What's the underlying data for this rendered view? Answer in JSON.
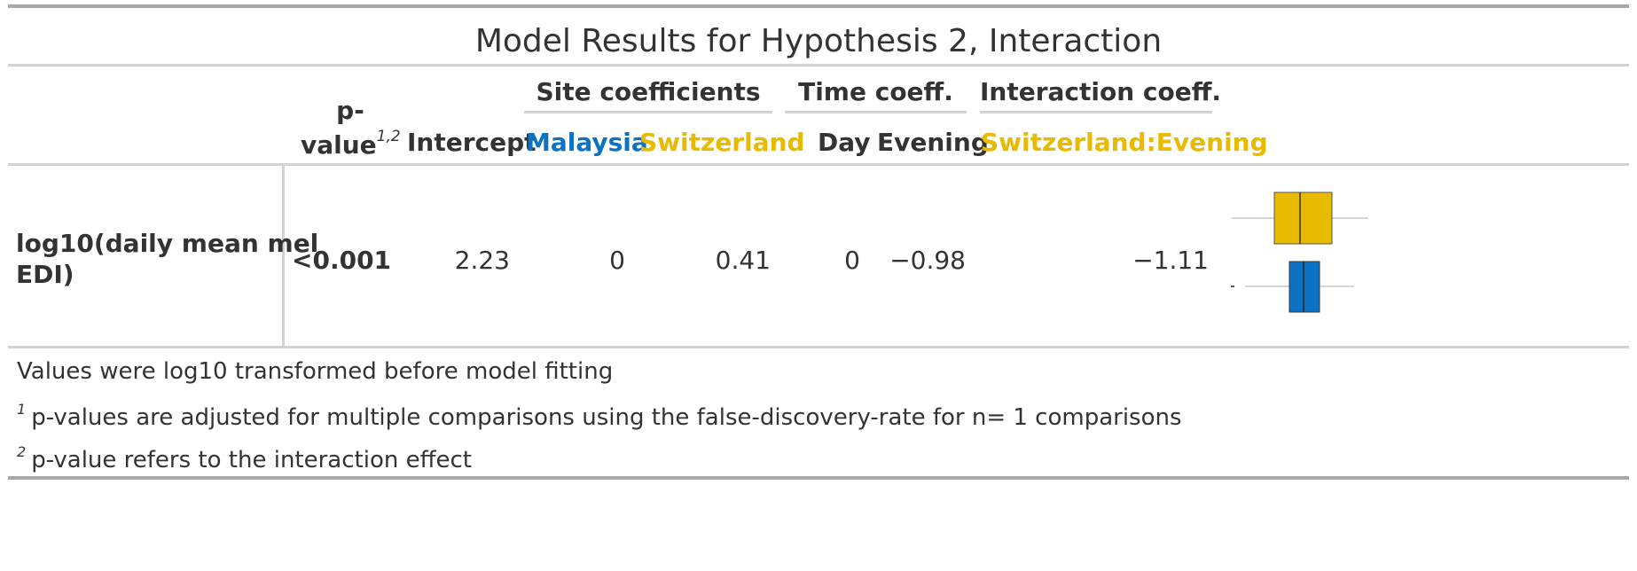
{
  "table": {
    "title": "Model Results for Hypothesis 2, Interaction",
    "headers": {
      "pvalue_line1": "p-",
      "pvalue_line2": "value",
      "pvalue_footnote_marks": "1,2",
      "intercept": "Intercept",
      "site_spanner": "Site coefficients",
      "malaysia": "Malaysia",
      "switzerland": "Switzerland",
      "time_spanner": "Time coeff.",
      "day": "Day",
      "evening": "Evening",
      "interaction_spanner": "Interaction coeff.",
      "switzerland_evening": "Switzerland:Evening"
    },
    "row": {
      "label_line1": "log10(daily mean mel",
      "label_line2": "EDI)",
      "pvalue": "<0.001",
      "intercept": "2.23",
      "malaysia": "0",
      "switzerland": "0.41",
      "day": "0",
      "evening": "−0.98",
      "switzerland_evening": "−1.11"
    },
    "footnotes": {
      "source_note": "Values were log10 transformed before model fitting",
      "note1_mark": "1",
      "note1_text": "p-values are adjusted for multiple comparisons using the false-discovery-rate for n= 1 comparisons",
      "note2_mark": "2",
      "note2_text": "p-value refers to the interaction effect"
    }
  },
  "colors": {
    "malaysia": "#0b72c4",
    "switzerland": "#e8ba00",
    "text": "#333333",
    "rule": "#d3d3d3"
  }
}
